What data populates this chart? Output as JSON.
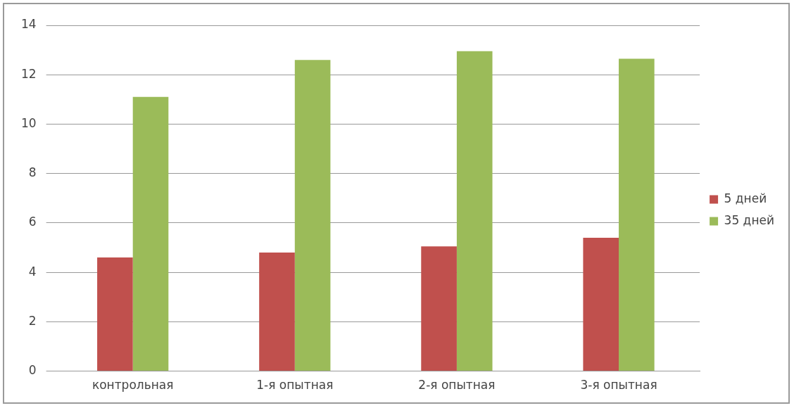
{
  "chart_data": {
    "type": "bar",
    "categories": [
      "контрольная",
      "1-я опытная",
      "2-я опытная",
      "3-я опытная"
    ],
    "series": [
      {
        "name": "5 дней",
        "color": "#c0504d",
        "values": [
          4.6,
          4.8,
          5.05,
          5.4
        ]
      },
      {
        "name": "35 дней",
        "color": "#9bbb59",
        "values": [
          11.1,
          12.6,
          12.95,
          12.65
        ]
      }
    ],
    "ylim": [
      0,
      14
    ],
    "yticks": [
      0,
      2,
      4,
      6,
      8,
      10,
      12,
      14
    ],
    "grid": "y",
    "legend": "right"
  }
}
